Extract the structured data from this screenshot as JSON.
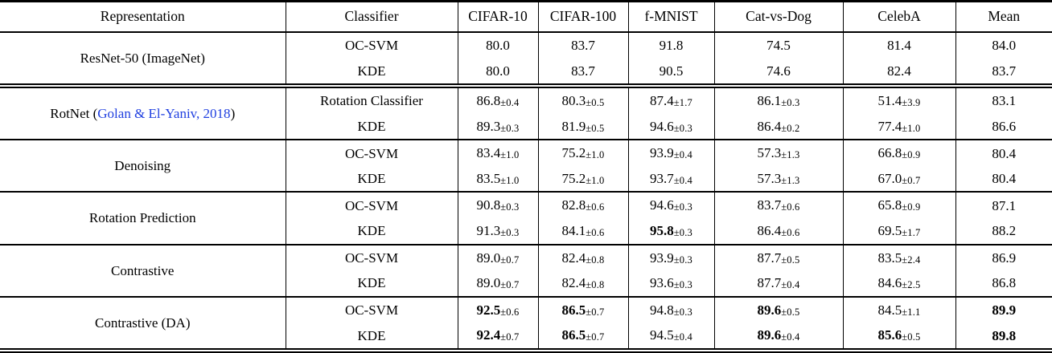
{
  "page": {
    "background": "#ffffff",
    "rule_color": "#000000",
    "citation_color": "#2040E0"
  },
  "table": {
    "headers": [
      "Representation",
      "Classifier",
      "CIFAR-10",
      "CIFAR-100",
      "f-MNIST",
      "Cat-vs-Dog",
      "CelebA",
      "Mean"
    ],
    "groups": [
      {
        "representation": {
          "prefix": "ResNet-50 (ImageNet)",
          "citation": "",
          "suffix": ""
        },
        "separator_after": "double",
        "rows": [
          {
            "classifier": "OC-SVM",
            "values": [
              {
                "v": "80.0",
                "pm": ""
              },
              {
                "v": "83.7",
                "pm": ""
              },
              {
                "v": "91.8",
                "pm": ""
              },
              {
                "v": "74.5",
                "pm": ""
              },
              {
                "v": "81.4",
                "pm": ""
              },
              {
                "v": "84.0",
                "pm": ""
              }
            ]
          },
          {
            "classifier": "KDE",
            "values": [
              {
                "v": "80.0",
                "pm": ""
              },
              {
                "v": "83.7",
                "pm": ""
              },
              {
                "v": "90.5",
                "pm": ""
              },
              {
                "v": "74.6",
                "pm": ""
              },
              {
                "v": "82.4",
                "pm": ""
              },
              {
                "v": "83.7",
                "pm": ""
              }
            ]
          }
        ]
      },
      {
        "representation": {
          "prefix": "RotNet (",
          "citation": "Golan & El-Yaniv, 2018",
          "suffix": ")"
        },
        "separator_after": "single",
        "rows": [
          {
            "classifier": "Rotation Classifier",
            "values": [
              {
                "v": "86.8",
                "pm": "±0.4"
              },
              {
                "v": "80.3",
                "pm": "±0.5"
              },
              {
                "v": "87.4",
                "pm": "±1.7"
              },
              {
                "v": "86.1",
                "pm": "±0.3"
              },
              {
                "v": "51.4",
                "pm": "±3.9"
              },
              {
                "v": "83.1",
                "pm": ""
              }
            ]
          },
          {
            "classifier": "KDE",
            "values": [
              {
                "v": "89.3",
                "pm": "±0.3"
              },
              {
                "v": "81.9",
                "pm": "±0.5"
              },
              {
                "v": "94.6",
                "pm": "±0.3"
              },
              {
                "v": "86.4",
                "pm": "±0.2"
              },
              {
                "v": "77.4",
                "pm": "±1.0"
              },
              {
                "v": "86.6",
                "pm": ""
              }
            ]
          }
        ]
      },
      {
        "representation": {
          "prefix": "Denoising",
          "citation": "",
          "suffix": ""
        },
        "separator_after": "single",
        "rows": [
          {
            "classifier": "OC-SVM",
            "values": [
              {
                "v": "83.4",
                "pm": "±1.0"
              },
              {
                "v": "75.2",
                "pm": "±1.0"
              },
              {
                "v": "93.9",
                "pm": "±0.4"
              },
              {
                "v": "57.3",
                "pm": "±1.3"
              },
              {
                "v": "66.8",
                "pm": "±0.9"
              },
              {
                "v": "80.4",
                "pm": ""
              }
            ]
          },
          {
            "classifier": "KDE",
            "values": [
              {
                "v": "83.5",
                "pm": "±1.0"
              },
              {
                "v": "75.2",
                "pm": "±1.0"
              },
              {
                "v": "93.7",
                "pm": "±0.4"
              },
              {
                "v": "57.3",
                "pm": "±1.3"
              },
              {
                "v": "67.0",
                "pm": "±0.7"
              },
              {
                "v": "80.4",
                "pm": ""
              }
            ]
          }
        ]
      },
      {
        "representation": {
          "prefix": "Rotation Prediction",
          "citation": "",
          "suffix": ""
        },
        "separator_after": "single",
        "rows": [
          {
            "classifier": "OC-SVM",
            "values": [
              {
                "v": "90.8",
                "pm": "±0.3"
              },
              {
                "v": "82.8",
                "pm": "±0.6"
              },
              {
                "v": "94.6",
                "pm": "±0.3"
              },
              {
                "v": "83.7",
                "pm": "±0.6"
              },
              {
                "v": "65.8",
                "pm": "±0.9"
              },
              {
                "v": "87.1",
                "pm": ""
              }
            ]
          },
          {
            "classifier": "KDE",
            "values": [
              {
                "v": "91.3",
                "pm": "±0.3"
              },
              {
                "v": "84.1",
                "pm": "±0.6"
              },
              {
                "v": "95.8",
                "pm": "±0.3",
                "bold": true
              },
              {
                "v": "86.4",
                "pm": "±0.6"
              },
              {
                "v": "69.5",
                "pm": "±1.7"
              },
              {
                "v": "88.2",
                "pm": ""
              }
            ]
          }
        ]
      },
      {
        "representation": {
          "prefix": "Contrastive",
          "citation": "",
          "suffix": ""
        },
        "separator_after": "single",
        "rows": [
          {
            "classifier": "OC-SVM",
            "values": [
              {
                "v": "89.0",
                "pm": "±0.7"
              },
              {
                "v": "82.4",
                "pm": "±0.8"
              },
              {
                "v": "93.9",
                "pm": "±0.3"
              },
              {
                "v": "87.7",
                "pm": "±0.5"
              },
              {
                "v": "83.5",
                "pm": "±2.4"
              },
              {
                "v": "86.9",
                "pm": ""
              }
            ]
          },
          {
            "classifier": "KDE",
            "values": [
              {
                "v": "89.0",
                "pm": "±0.7"
              },
              {
                "v": "82.4",
                "pm": "±0.8"
              },
              {
                "v": "93.6",
                "pm": "±0.3"
              },
              {
                "v": "87.7",
                "pm": "±0.4"
              },
              {
                "v": "84.6",
                "pm": "±2.5"
              },
              {
                "v": "86.8",
                "pm": ""
              }
            ]
          }
        ]
      },
      {
        "representation": {
          "prefix": "Contrastive (DA)",
          "citation": "",
          "suffix": ""
        },
        "separator_after": "bottom-double",
        "rows": [
          {
            "classifier": "OC-SVM",
            "values": [
              {
                "v": "92.5",
                "pm": "±0.6",
                "bold": true
              },
              {
                "v": "86.5",
                "pm": "±0.7",
                "bold": true
              },
              {
                "v": "94.8",
                "pm": "±0.3"
              },
              {
                "v": "89.6",
                "pm": "±0.5",
                "bold": true
              },
              {
                "v": "84.5",
                "pm": "±1.1"
              },
              {
                "v": "89.9",
                "pm": "",
                "bold": true
              }
            ]
          },
          {
            "classifier": "KDE",
            "values": [
              {
                "v": "92.4",
                "pm": "±0.7",
                "bold": true
              },
              {
                "v": "86.5",
                "pm": "±0.7",
                "bold": true
              },
              {
                "v": "94.5",
                "pm": "±0.4"
              },
              {
                "v": "89.6",
                "pm": "±0.4",
                "bold": true
              },
              {
                "v": "85.6",
                "pm": "±0.5",
                "bold": true
              },
              {
                "v": "89.8",
                "pm": "",
                "bold": true
              }
            ]
          }
        ]
      }
    ]
  }
}
